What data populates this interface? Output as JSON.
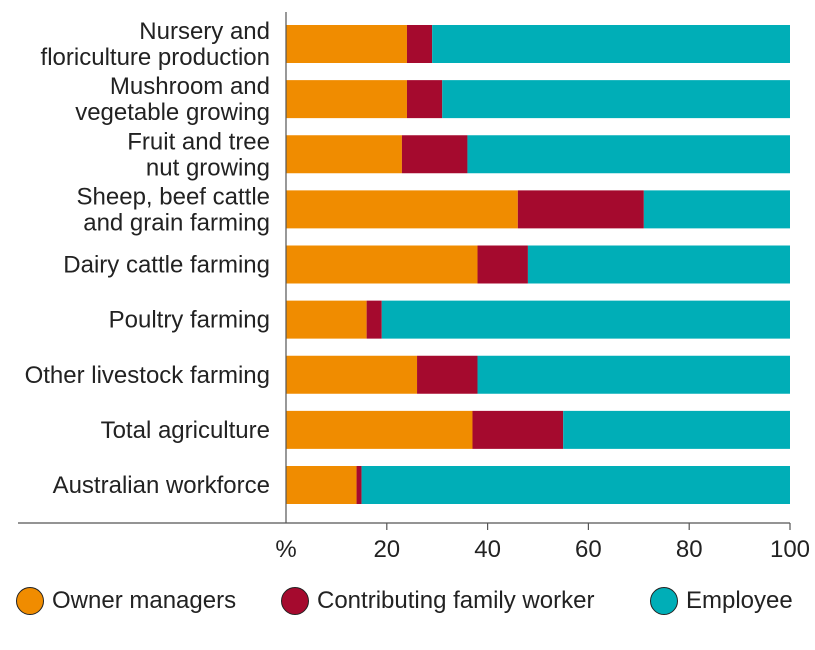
{
  "chart_data": {
    "type": "bar",
    "orientation": "horizontal",
    "stacked": true,
    "categories": [
      [
        "Nursery and",
        "floriculture production"
      ],
      [
        "Mushroom and",
        "vegetable growing"
      ],
      [
        "Fruit and tree",
        "nut growing"
      ],
      [
        "Sheep, beef cattle",
        "and grain farming"
      ],
      [
        "Dairy cattle farming"
      ],
      [
        "Poultry farming"
      ],
      [
        "Other livestock farming"
      ],
      [
        "Total agriculture"
      ],
      [
        "Australian workforce"
      ]
    ],
    "series": [
      {
        "name": "Owner managers",
        "color": "#f08c00",
        "values": [
          24,
          24,
          23,
          46,
          38,
          16,
          26,
          37,
          14
        ]
      },
      {
        "name": "Contributing family worker",
        "color": "#a50a2e",
        "values": [
          5,
          7,
          13,
          25,
          10,
          3,
          12,
          18,
          1
        ]
      },
      {
        "name": "Employee",
        "color": "#00aeb7",
        "values": [
          71,
          69,
          64,
          29,
          52,
          81,
          62,
          45,
          85
        ]
      }
    ],
    "xlabel": "%",
    "xlim": [
      0,
      100
    ],
    "xticks": [
      "20",
      "40",
      "60",
      "80",
      "100"
    ],
    "grid": false,
    "legend_position": "bottom"
  }
}
